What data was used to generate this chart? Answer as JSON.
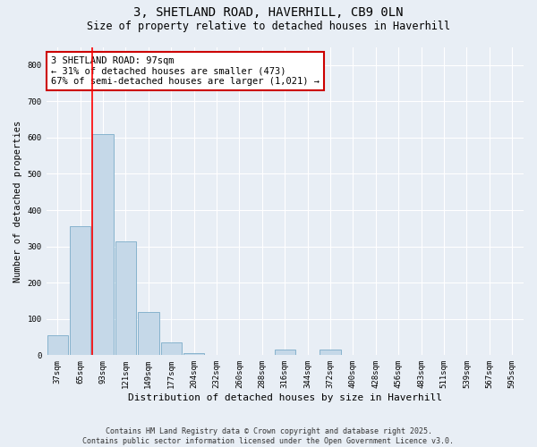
{
  "title": "3, SHETLAND ROAD, HAVERHILL, CB9 0LN",
  "subtitle": "Size of property relative to detached houses in Haverhill",
  "xlabel": "Distribution of detached houses by size in Haverhill",
  "ylabel": "Number of detached properties",
  "categories": [
    "37sqm",
    "65sqm",
    "93sqm",
    "121sqm",
    "149sqm",
    "177sqm",
    "204sqm",
    "232sqm",
    "260sqm",
    "288sqm",
    "316sqm",
    "344sqm",
    "372sqm",
    "400sqm",
    "428sqm",
    "456sqm",
    "483sqm",
    "511sqm",
    "539sqm",
    "567sqm",
    "595sqm"
  ],
  "values": [
    55,
    355,
    610,
    315,
    120,
    35,
    5,
    0,
    0,
    0,
    15,
    0,
    15,
    0,
    0,
    0,
    0,
    0,
    0,
    0,
    0
  ],
  "bar_color": "#c5d8e8",
  "bar_edge_color": "#7aacc8",
  "red_line_index": 2,
  "annotation_text": "3 SHETLAND ROAD: 97sqm\n← 31% of detached houses are smaller (473)\n67% of semi-detached houses are larger (1,021) →",
  "annotation_box_color": "#ffffff",
  "annotation_box_edge": "#cc0000",
  "ylim": [
    0,
    850
  ],
  "yticks": [
    0,
    100,
    200,
    300,
    400,
    500,
    600,
    700,
    800
  ],
  "background_color": "#e8eef5",
  "plot_background": "#e8eef5",
  "footer": "Contains HM Land Registry data © Crown copyright and database right 2025.\nContains public sector information licensed under the Open Government Licence v3.0.",
  "title_fontsize": 10,
  "subtitle_fontsize": 8.5,
  "xlabel_fontsize": 8,
  "ylabel_fontsize": 7.5,
  "tick_fontsize": 6.5,
  "annotation_fontsize": 7.5,
  "footer_fontsize": 6
}
